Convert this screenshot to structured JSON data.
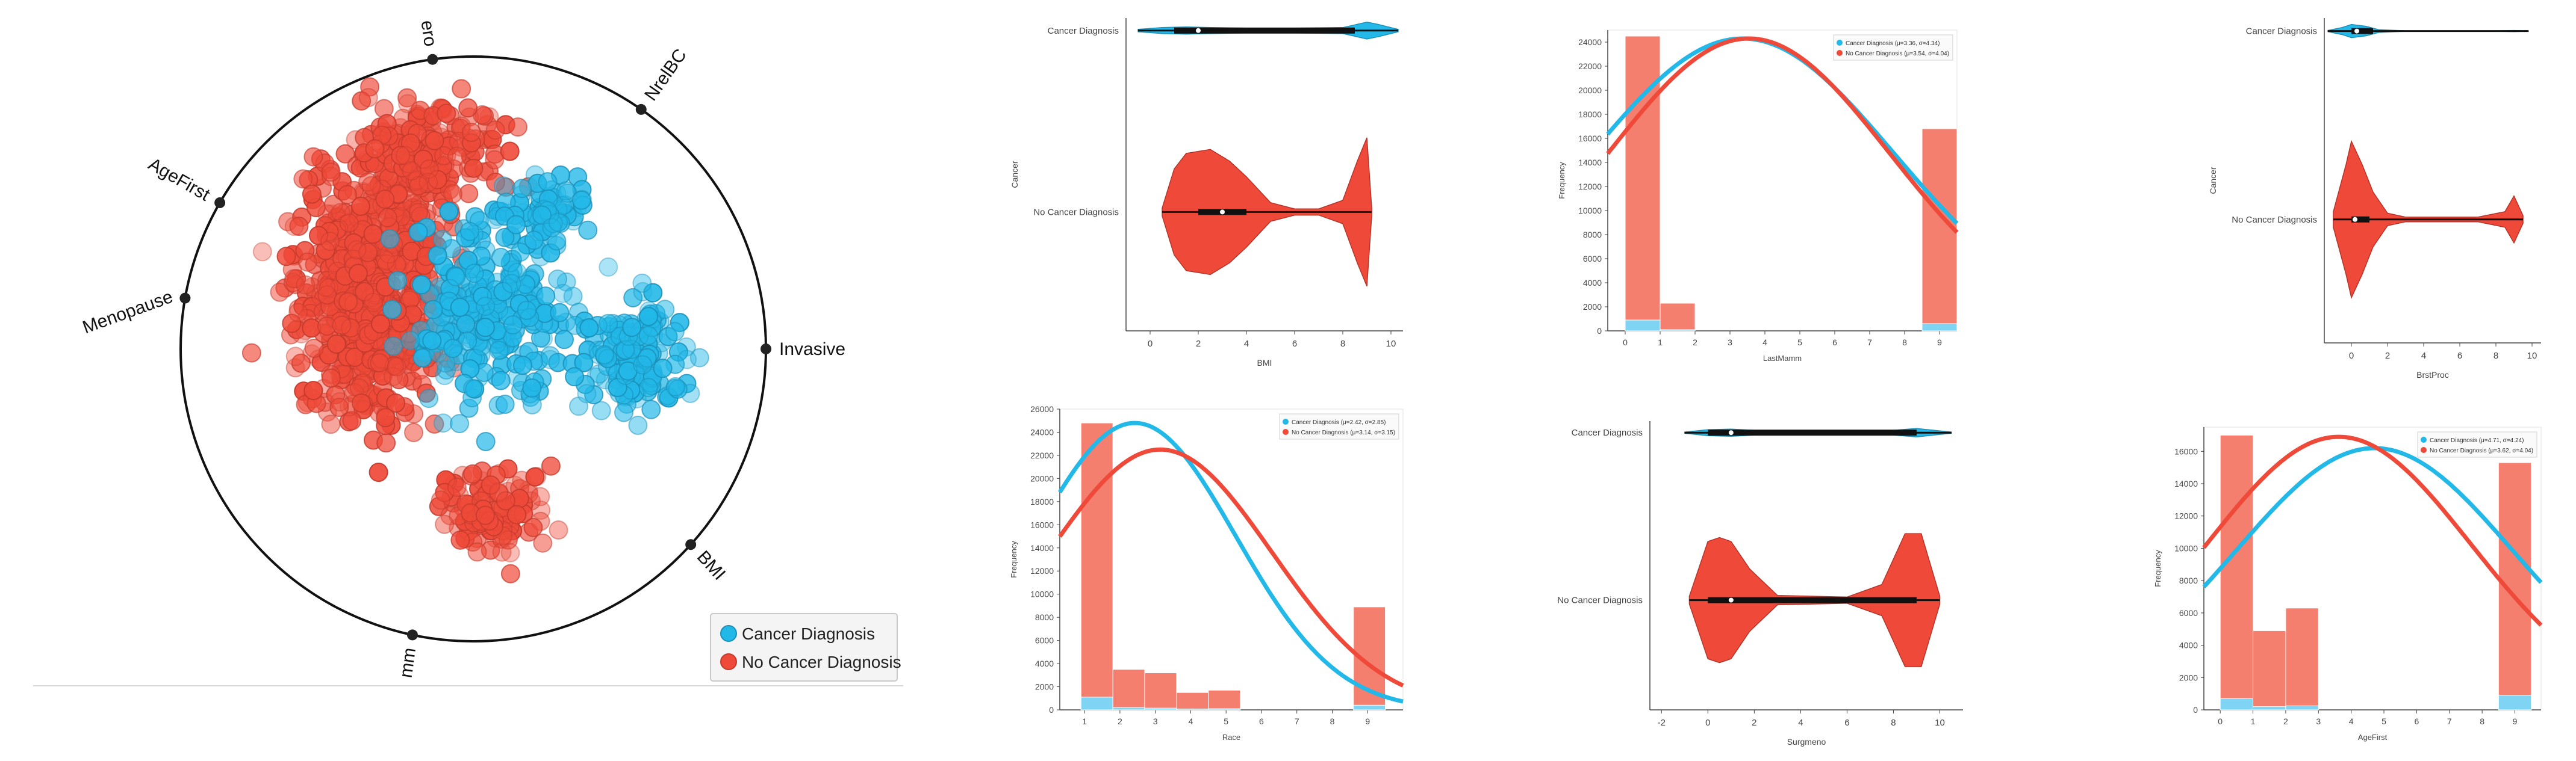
{
  "colors": {
    "cancer": "#22b8e8",
    "no_cancer": "#ef4a39",
    "no_cancer_hist": "#f47f6f",
    "cancer_hist": "#7fd3f3"
  },
  "radviz": {
    "anchors": [
      "Invasive",
      "NrelBC",
      "ero",
      "AgeFirst",
      "Menopause",
      "mm",
      "BMI"
    ],
    "legend": [
      "Cancer Diagnosis",
      "No Cancer Diagnosis"
    ]
  },
  "chart_data": [
    {
      "id": "bmi-violin",
      "type": "violin",
      "categories": [
        "Cancer Diagnosis",
        "No Cancer Diagnosis"
      ],
      "xlabel": "BMI",
      "ylabel": "Cancer",
      "xlim": [
        -1,
        10.5
      ],
      "xticks": [
        0,
        2,
        4,
        6,
        8,
        10
      ],
      "series": [
        {
          "name": "Cancer Diagnosis",
          "min": -0.5,
          "q1": 1.0,
          "median": 2.0,
          "q3": 8.5,
          "max": 10.3,
          "density": [
            [
              -0.5,
              0.1
            ],
            [
              0.5,
              0.25
            ],
            [
              1.5,
              0.3
            ],
            [
              2.5,
              0.25
            ],
            [
              4,
              0.2
            ],
            [
              6,
              0.2
            ],
            [
              8,
              0.25
            ],
            [
              9,
              0.7
            ],
            [
              9.5,
              0.5
            ],
            [
              10.3,
              0.1
            ]
          ]
        },
        {
          "name": "No Cancer Diagnosis",
          "min": 0.5,
          "q1": 2.0,
          "median": 3.0,
          "q3": 4.0,
          "max": 9.2,
          "density": [
            [
              0.5,
              0.05
            ],
            [
              1,
              0.55
            ],
            [
              1.5,
              0.75
            ],
            [
              2.5,
              0.8
            ],
            [
              3.3,
              0.65
            ],
            [
              4,
              0.45
            ],
            [
              5,
              0.12
            ],
            [
              6,
              0.04
            ],
            [
              7,
              0.04
            ],
            [
              8,
              0.15
            ],
            [
              8.6,
              0.65
            ],
            [
              9,
              0.95
            ],
            [
              9.2,
              0.05
            ]
          ]
        }
      ]
    },
    {
      "id": "lastmamm-hist",
      "type": "bar",
      "xlabel": "LastMamm",
      "ylabel": "Frequency",
      "xlim": [
        -0.5,
        9.5
      ],
      "ylim": [
        0,
        25000
      ],
      "xticks": [
        0,
        1,
        2,
        3,
        4,
        5,
        6,
        7,
        8,
        9
      ],
      "yticks": [
        0,
        2000,
        4000,
        6000,
        8000,
        10000,
        12000,
        14000,
        16000,
        18000,
        20000,
        22000,
        24000
      ],
      "bins": [
        [
          0,
          1
        ],
        [
          1,
          2
        ],
        [
          8.5,
          9.5
        ]
      ],
      "series": [
        {
          "name": "No Cancer Diagnosis",
          "values": [
            24500,
            2300,
            16800
          ]
        },
        {
          "name": "Cancer Diagnosis",
          "values": [
            900,
            100,
            600
          ]
        }
      ],
      "legend": [
        "Cancer Diagnosis (μ=3.36, σ=4.34)",
        "No Cancer Diagnosis (μ=3.54, σ=4.04)"
      ],
      "curves": [
        {
          "name": "Cancer Diagnosis",
          "mu": 3.36,
          "sigma": 4.34,
          "peak": 24300
        },
        {
          "name": "No Cancer Diagnosis",
          "mu": 3.54,
          "sigma": 4.04,
          "peak": 24300
        }
      ]
    },
    {
      "id": "brstproc-violin",
      "type": "violin",
      "categories": [
        "Cancer Diagnosis",
        "No Cancer Diagnosis"
      ],
      "xlabel": "BrstProc",
      "ylabel": "Cancer",
      "xlim": [
        -1.5,
        10.5
      ],
      "xticks": [
        0,
        2,
        4,
        6,
        8,
        10
      ],
      "series": [
        {
          "name": "Cancer Diagnosis",
          "min": -1.3,
          "q1": 0.0,
          "median": 0.3,
          "q3": 1.2,
          "max": 9.8,
          "density": [
            [
              -1.3,
              0.05
            ],
            [
              -0.5,
              0.3
            ],
            [
              0,
              0.55
            ],
            [
              0.8,
              0.4
            ],
            [
              1.5,
              0.12
            ],
            [
              3,
              0.02
            ],
            [
              8,
              0.02
            ],
            [
              9,
              0.05
            ],
            [
              9.8,
              0.02
            ]
          ]
        },
        {
          "name": "No Cancer Diagnosis",
          "min": -1.0,
          "q1": 0.0,
          "median": 0.2,
          "q3": 1.0,
          "max": 9.5,
          "density": [
            [
              -1,
              0.1
            ],
            [
              -0.3,
              0.7
            ],
            [
              0,
              1.0
            ],
            [
              0.6,
              0.7
            ],
            [
              1.2,
              0.35
            ],
            [
              2,
              0.08
            ],
            [
              3,
              0.03
            ],
            [
              7,
              0.03
            ],
            [
              8.5,
              0.1
            ],
            [
              9,
              0.3
            ],
            [
              9.5,
              0.05
            ]
          ]
        }
      ]
    },
    {
      "id": "race-hist",
      "type": "bar",
      "xlabel": "Race",
      "ylabel": "Frequency",
      "xlim": [
        0.3,
        10
      ],
      "ylim": [
        0,
        26000
      ],
      "xticks": [
        1,
        2,
        3,
        4,
        5,
        6,
        7,
        8,
        9
      ],
      "yticks": [
        0,
        2000,
        4000,
        6000,
        8000,
        10000,
        12000,
        14000,
        16000,
        18000,
        20000,
        22000,
        24000,
        26000
      ],
      "bins": [
        [
          0.9,
          1.8
        ],
        [
          1.8,
          2.7
        ],
        [
          2.7,
          3.6
        ],
        [
          3.6,
          4.5
        ],
        [
          4.5,
          5.4
        ],
        [
          8.6,
          9.5
        ]
      ],
      "series": [
        {
          "name": "No Cancer Diagnosis",
          "values": [
            24800,
            3500,
            3200,
            1500,
            1700,
            8900
          ]
        },
        {
          "name": "Cancer Diagnosis",
          "values": [
            1100,
            200,
            150,
            80,
            100,
            400
          ]
        }
      ],
      "legend": [
        "Cancer Diagnosis (μ=2.42, σ=2.85)",
        "No Cancer Diagnosis (μ=3.14, σ=3.15)"
      ],
      "curves": [
        {
          "name": "Cancer Diagnosis",
          "mu": 2.42,
          "sigma": 2.85,
          "peak": 24800
        },
        {
          "name": "No Cancer Diagnosis",
          "mu": 3.14,
          "sigma": 3.15,
          "peak": 22500
        }
      ]
    },
    {
      "id": "surgmeno-violin",
      "type": "violin",
      "categories": [
        "Cancer Diagnosis",
        "No Cancer Diagnosis"
      ],
      "xlabel": "Surgmeno",
      "ylabel": "Cancer",
      "xlim": [
        -2.5,
        11
      ],
      "xticks": [
        -2,
        0,
        2,
        4,
        6,
        8,
        10
      ],
      "series": [
        {
          "name": "Cancer Diagnosis",
          "min": -1.0,
          "q1": 0.0,
          "median": 1.0,
          "q3": 9.0,
          "max": 10.5,
          "density": [
            [
              -1,
              0.05
            ],
            [
              0,
              0.25
            ],
            [
              1,
              0.3
            ],
            [
              2,
              0.2
            ],
            [
              4,
              0.15
            ],
            [
              6,
              0.15
            ],
            [
              8,
              0.2
            ],
            [
              9,
              0.35
            ],
            [
              10.5,
              0.05
            ]
          ]
        },
        {
          "name": "No Cancer Diagnosis",
          "min": -0.8,
          "q1": 0.0,
          "median": 1.0,
          "q3": 9.0,
          "max": 10.0,
          "density": [
            [
              -0.8,
              0.05
            ],
            [
              0,
              0.75
            ],
            [
              0.5,
              0.8
            ],
            [
              1,
              0.75
            ],
            [
              1.8,
              0.4
            ],
            [
              3,
              0.06
            ],
            [
              6,
              0.04
            ],
            [
              7.5,
              0.2
            ],
            [
              8.5,
              0.85
            ],
            [
              9.2,
              0.85
            ],
            [
              10,
              0.05
            ]
          ]
        }
      ]
    },
    {
      "id": "agefirst-hist",
      "type": "bar",
      "xlabel": "AgeFirst",
      "ylabel": "Frequency",
      "xlim": [
        -0.5,
        9.8
      ],
      "ylim": [
        0,
        17500
      ],
      "xticks": [
        0,
        1,
        2,
        3,
        4,
        5,
        6,
        7,
        8,
        9
      ],
      "yticks": [
        0,
        2000,
        4000,
        6000,
        8000,
        10000,
        12000,
        14000,
        16000
      ],
      "bins": [
        [
          0,
          1
        ],
        [
          1,
          2
        ],
        [
          2,
          3
        ],
        [
          8.5,
          9.5
        ]
      ],
      "series": [
        {
          "name": "No Cancer Diagnosis",
          "values": [
            17000,
            4900,
            6300,
            15300
          ]
        },
        {
          "name": "Cancer Diagnosis",
          "values": [
            700,
            200,
            250,
            900
          ]
        }
      ],
      "legend": [
        "Cancer Diagnosis (μ=4.71, σ=4.24)",
        "No Cancer Diagnosis (μ=3.62, σ=4.04)"
      ],
      "curves": [
        {
          "name": "Cancer Diagnosis",
          "mu": 4.71,
          "sigma": 4.24,
          "peak": 16200
        },
        {
          "name": "No Cancer Diagnosis",
          "mu": 3.62,
          "sigma": 4.04,
          "peak": 16900
        }
      ]
    }
  ]
}
